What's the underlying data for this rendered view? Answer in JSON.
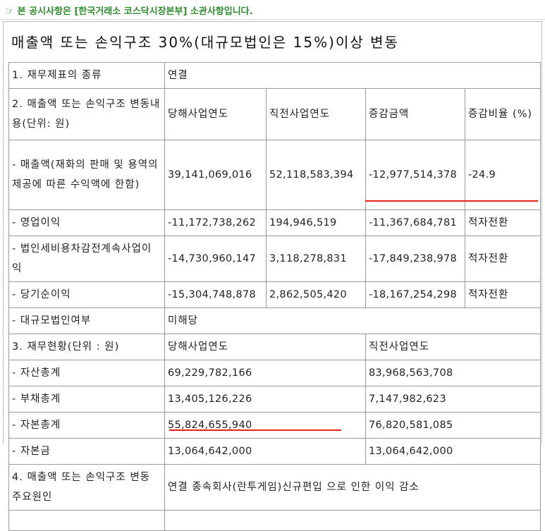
{
  "notice": {
    "icon": "hand-pointing-icon",
    "text": "본 공시사항은 [한국거래소 코스닥시장본부] 소관사항입니다."
  },
  "title": "매출액 또는 손익구조 30%(대규모법인은 15%)이상 변동",
  "rows": {
    "r1": {
      "label": "1. 재무제표의 종류",
      "value": "연결"
    },
    "r2": {
      "label": "2. 매출액 또는 손익구조 변동내용(단위: 원)",
      "cur": "당해사업연도",
      "prev": "직전사업연도",
      "diff": "증감금액",
      "rate": "증감비율 (%)"
    },
    "sales": {
      "label": "- 매출액(재화의 판매 및 용역의 제공에 따른 수익액에 한함)",
      "cur": "39,141,069,016",
      "prev": "52,118,583,394",
      "diff": "-12,977,514,378",
      "rate": "-24.9"
    },
    "op": {
      "label": "- 영업이익",
      "cur": "-11,172,738,262",
      "prev": "194,946,519",
      "diff": "-11,367,684,781",
      "rate": "적자전환"
    },
    "pretax": {
      "label": "- 법인세비용차감전계속사업이익",
      "cur": "-14,730,960,147",
      "prev": "3,118,278,831",
      "diff": "-17,849,238,978",
      "rate": "적자전환"
    },
    "net": {
      "label": "- 당기순이익",
      "cur": "-15,304,748,878",
      "prev": "2,862,505,420",
      "diff": "-18,167,254,298",
      "rate": "적자전환"
    },
    "large": {
      "label": "- 대규모법인여부",
      "value": "미해당"
    },
    "r3": {
      "label": "3. 재무현황(단위 : 원)",
      "cur": "당해사업연도",
      "prev": "직전사업연도"
    },
    "assets": {
      "label": "- 자산총계",
      "cur": "69,229,782,166",
      "prev": "83,968,563,708"
    },
    "liab": {
      "label": "- 부채총계",
      "cur": "13,405,126,226",
      "prev": "7,147,982,623"
    },
    "equity": {
      "label": "- 자본총계",
      "cur": "55,824,655,940",
      "prev": "76,820,581,085"
    },
    "capital": {
      "label": "- 자본금",
      "cur": "13,064,642,000",
      "prev": "13,064,642,000"
    },
    "r4": {
      "label": "4. 매출액 또는 손익구조 변동 주요원인",
      "value": "연결 종속회사(란투게임)신규편입 으로 인한 이익 감소"
    }
  },
  "colors": {
    "notice": "#2e8b2e",
    "underline": "#e8201a",
    "border": "#9a9a9a"
  }
}
